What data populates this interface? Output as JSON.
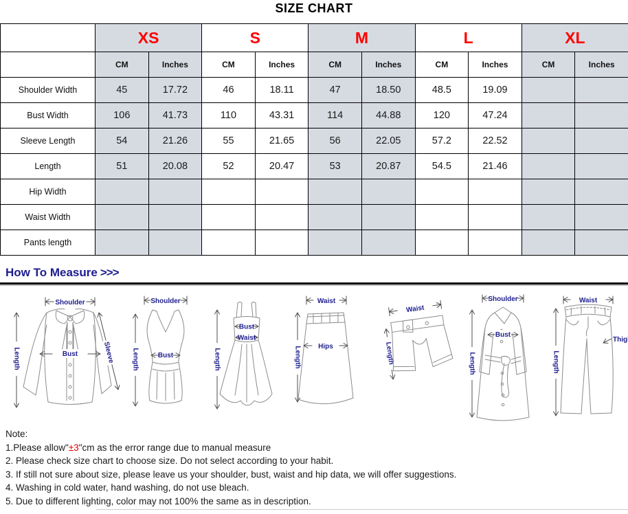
{
  "title": "SIZE CHART",
  "colors": {
    "size_label_red": "#ff0000",
    "shaded_cell_gray": "#d6dbe2",
    "measure_heading_navy": "#1c1c8f",
    "note_red": "#e30000"
  },
  "table": {
    "sizes": [
      "XS",
      "S",
      "M",
      "L",
      "XL"
    ],
    "units": [
      "CM",
      "Inches"
    ],
    "row_labels": [
      "Shoulder Width",
      "Bust Width",
      "Sleeve Length",
      "Length",
      "Hip Width",
      "Waist Width",
      "Pants length"
    ],
    "rows": [
      [
        "45",
        "17.72",
        "46",
        "18.11",
        "47",
        "18.50",
        "48.5",
        "19.09",
        "",
        ""
      ],
      [
        "106",
        "41.73",
        "110",
        "43.31",
        "114",
        "44.88",
        "120",
        "47.24",
        "",
        ""
      ],
      [
        "54",
        "21.26",
        "55",
        "21.65",
        "56",
        "22.05",
        "57.2",
        "22.52",
        "",
        ""
      ],
      [
        "51",
        "20.08",
        "52",
        "20.47",
        "53",
        "20.87",
        "54.5",
        "21.46",
        "",
        ""
      ],
      [
        "",
        "",
        "",
        "",
        "",
        "",
        "",
        "",
        "",
        ""
      ],
      [
        "",
        "",
        "",
        "",
        "",
        "",
        "",
        "",
        "",
        ""
      ],
      [
        "",
        "",
        "",
        "",
        "",
        "",
        "",
        "",
        "",
        ""
      ]
    ]
  },
  "measure": {
    "heading": "How To Measure",
    "chevrons": ">>>"
  },
  "diagrams": {
    "blouse": {
      "shoulder": "Shoulder",
      "length": "Length",
      "bust": "Bust",
      "sleeve": "Sleeve"
    },
    "tank": {
      "shoulder": "Shoulder",
      "length": "Length",
      "bust": "Bust"
    },
    "dress": {
      "length": "Length",
      "bust": "Bust",
      "waist": "Waist"
    },
    "skirt": {
      "waist": "Waist",
      "length": "Length",
      "hips": "Hips"
    },
    "shorts": {
      "waist": "Waist",
      "length": "Length"
    },
    "coat": {
      "shoulder": "Shoulder",
      "length": "Length",
      "bust": "Bust"
    },
    "pants": {
      "waist": "Waist",
      "length": "Length",
      "thigh": "Thigh"
    }
  },
  "notes": {
    "heading": "Note:",
    "line1_prefix": "1.Please allow\"",
    "line1_red": "±3",
    "line1_suffix": "\"cm as the error range due to manual measure",
    "lines": [
      "2. Please check size chart to choose size. Do not select according to your habit.",
      "3. If still not sure about size, please leave us your shoulder, bust, waist and hip data, we will offer suggestions.",
      "4. Washing in cold water, hand washing, do not use bleach.",
      "5. Due to different lighting, color may not 100% the same as in description."
    ]
  }
}
